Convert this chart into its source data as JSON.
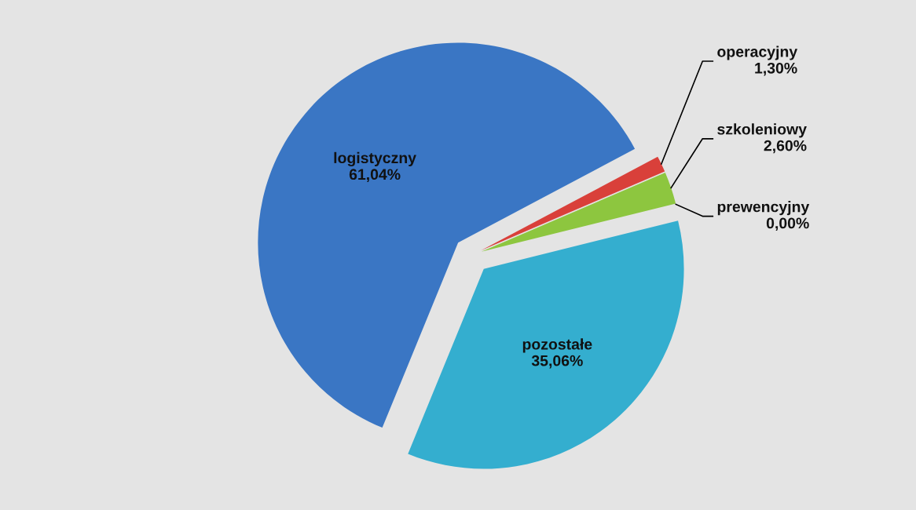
{
  "chart_data": {
    "type": "pie",
    "categories": [
      "operacyjny",
      "szkoleniowy",
      "prewencyjny",
      "pozostałe",
      "logistyczny"
    ],
    "values": [
      1.3,
      2.6,
      0.0,
      35.06,
      61.04
    ],
    "colors": [
      "#d9403a",
      "#8dc63f",
      "#f0a030",
      "#34aecf",
      "#3a76c4"
    ],
    "value_labels": [
      "1,30%",
      "2,60%",
      "0,00%",
      "35,06%",
      "61,04%"
    ]
  }
}
